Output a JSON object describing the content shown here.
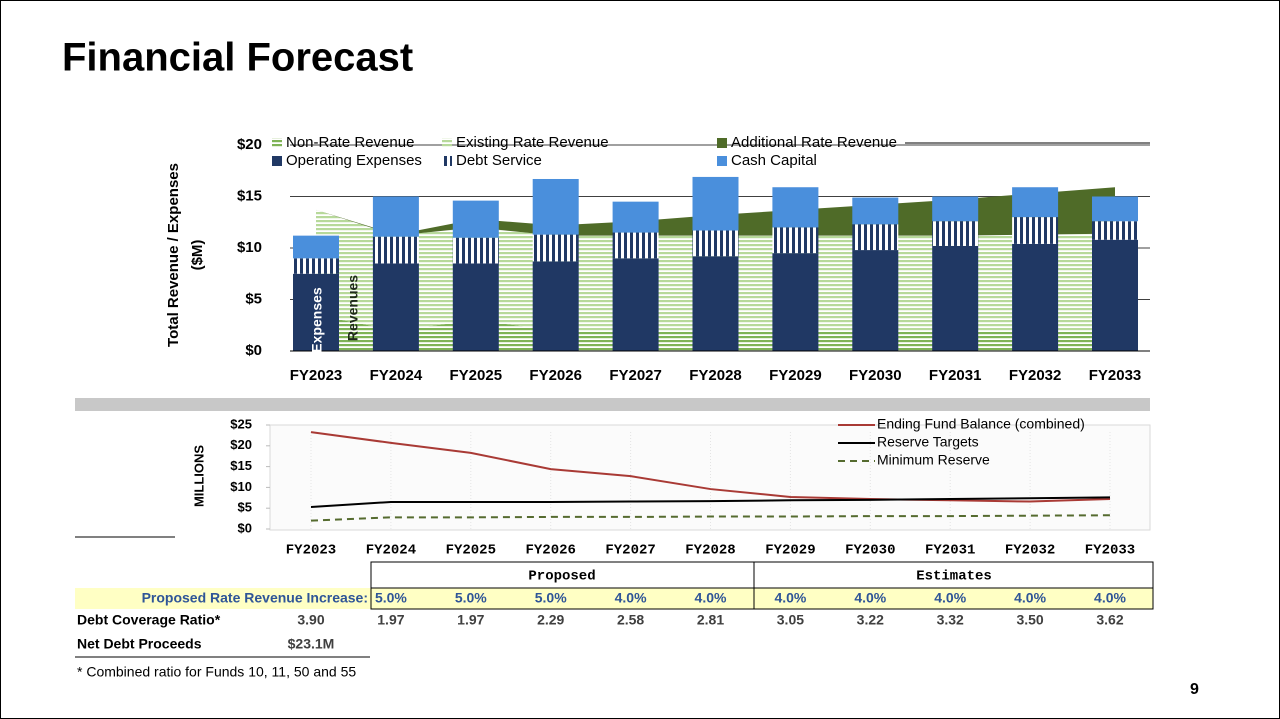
{
  "title": "Financial Forecast",
  "chart_data": [
    {
      "type": "combo",
      "ylabel": [
        "Total Revenue / Expenses",
        "($M)"
      ],
      "categories": [
        "FY2023",
        "FY2024",
        "FY2025",
        "FY2026",
        "FY2027",
        "FY2028",
        "FY2029",
        "FY2030",
        "FY2031",
        "FY2032",
        "FY2033"
      ],
      "series": [
        {
          "name": "Non-Rate Revenue",
          "mark": "area",
          "pattern": "hstripe",
          "color": "#7fb356",
          "values": [
            3.5,
            2.0,
            3.0,
            2.0,
            2.0,
            2.0,
            2.0,
            2.0,
            2.0,
            2.0,
            2.0
          ]
        },
        {
          "name": "Existing Rate Revenue",
          "mark": "area",
          "pattern": "hstripe",
          "color": "#b7d99a",
          "values": [
            10.2,
            9.2,
            9.0,
            9.2,
            9.2,
            9.2,
            9.2,
            9.2,
            9.2,
            9.3,
            9.4
          ]
        },
        {
          "name": "Additional Rate Revenue",
          "mark": "area",
          "color": "#4f6b28",
          "values": [
            0,
            0.1,
            0.8,
            1.0,
            1.4,
            2.0,
            2.5,
            3.0,
            3.5,
            4.0,
            4.5
          ]
        },
        {
          "name": "Operating Expenses",
          "mark": "bar",
          "color": "#203864",
          "values": [
            7.5,
            8.5,
            8.5,
            8.7,
            9.0,
            9.2,
            9.5,
            9.8,
            10.2,
            10.4,
            10.8
          ]
        },
        {
          "name": "Debt Service",
          "mark": "bar",
          "pattern": "vstripe",
          "color": "#203864",
          "values": [
            1.5,
            2.6,
            2.5,
            2.6,
            2.5,
            2.5,
            2.5,
            2.5,
            2.4,
            2.6,
            1.8
          ]
        },
        {
          "name": "Cash Capital",
          "mark": "bar",
          "color": "#4a8fdc",
          "values": [
            2.2,
            3.9,
            3.6,
            5.4,
            3.0,
            5.2,
            3.9,
            2.6,
            2.4,
            2.9,
            2.4
          ]
        }
      ],
      "annotations": [
        "Expenses",
        "Revenues"
      ],
      "ylim": [
        0,
        20
      ],
      "yticks": [
        {
          "value": 0,
          "label": "$0"
        },
        {
          "value": 5,
          "label": "$5"
        },
        {
          "value": 10,
          "label": "$10"
        },
        {
          "value": 15,
          "label": "$15"
        },
        {
          "value": 20,
          "label": "$20"
        }
      ],
      "grid": true
    },
    {
      "type": "line",
      "ylabel": "MILLIONS",
      "categories": [
        "FY2023",
        "FY2024",
        "FY2025",
        "FY2026",
        "FY2027",
        "FY2028",
        "FY2029",
        "FY2030",
        "FY2031",
        "FY2032",
        "FY2033"
      ],
      "series": [
        {
          "name": "Ending Fund Balance (combined)",
          "color": "#a93a35",
          "values": [
            23.3,
            20.7,
            18.3,
            14.4,
            12.7,
            9.6,
            7.7,
            7.2,
            6.9,
            6.6,
            7.2
          ]
        },
        {
          "name": "Reserve Targets",
          "color": "#000000",
          "values": [
            5.3,
            6.5,
            6.5,
            6.5,
            6.6,
            6.7,
            6.9,
            7.0,
            7.2,
            7.4,
            7.6
          ]
        },
        {
          "name": "Minimum Reserve",
          "color": "#556b2f",
          "dashed": true,
          "values": [
            2.0,
            2.8,
            2.8,
            2.9,
            2.9,
            3.0,
            3.0,
            3.1,
            3.1,
            3.2,
            3.3
          ]
        }
      ],
      "ylim": [
        0,
        25
      ],
      "yticks": [
        {
          "value": 0,
          "label": "$0"
        },
        {
          "value": 5,
          "label": "$5"
        },
        {
          "value": 10,
          "label": "$10"
        },
        {
          "value": 15,
          "label": "$15"
        },
        {
          "value": 20,
          "label": "$20"
        },
        {
          "value": 25,
          "label": "$25"
        }
      ]
    }
  ],
  "table": {
    "groups": [
      "Proposed",
      "Estimates"
    ],
    "rows": [
      {
        "label": "Proposed Rate Revenue Increase:",
        "values": [
          "5.0%",
          "5.0%",
          "5.0%",
          "4.0%",
          "4.0%",
          "4.0%",
          "4.0%",
          "4.0%",
          "4.0%",
          "4.0%"
        ]
      },
      {
        "label": "Debt Coverage Ratio*",
        "values": [
          "3.90",
          "1.97",
          "1.97",
          "2.29",
          "2.58",
          "2.81",
          "3.05",
          "3.22",
          "3.32",
          "3.50",
          "3.62"
        ]
      },
      {
        "label": "Net Debt Proceeds",
        "values": [
          "$23.1M"
        ]
      }
    ]
  },
  "footnote": "* Combined ratio for Funds 10, 11, 50 and 55",
  "page_number": "9"
}
